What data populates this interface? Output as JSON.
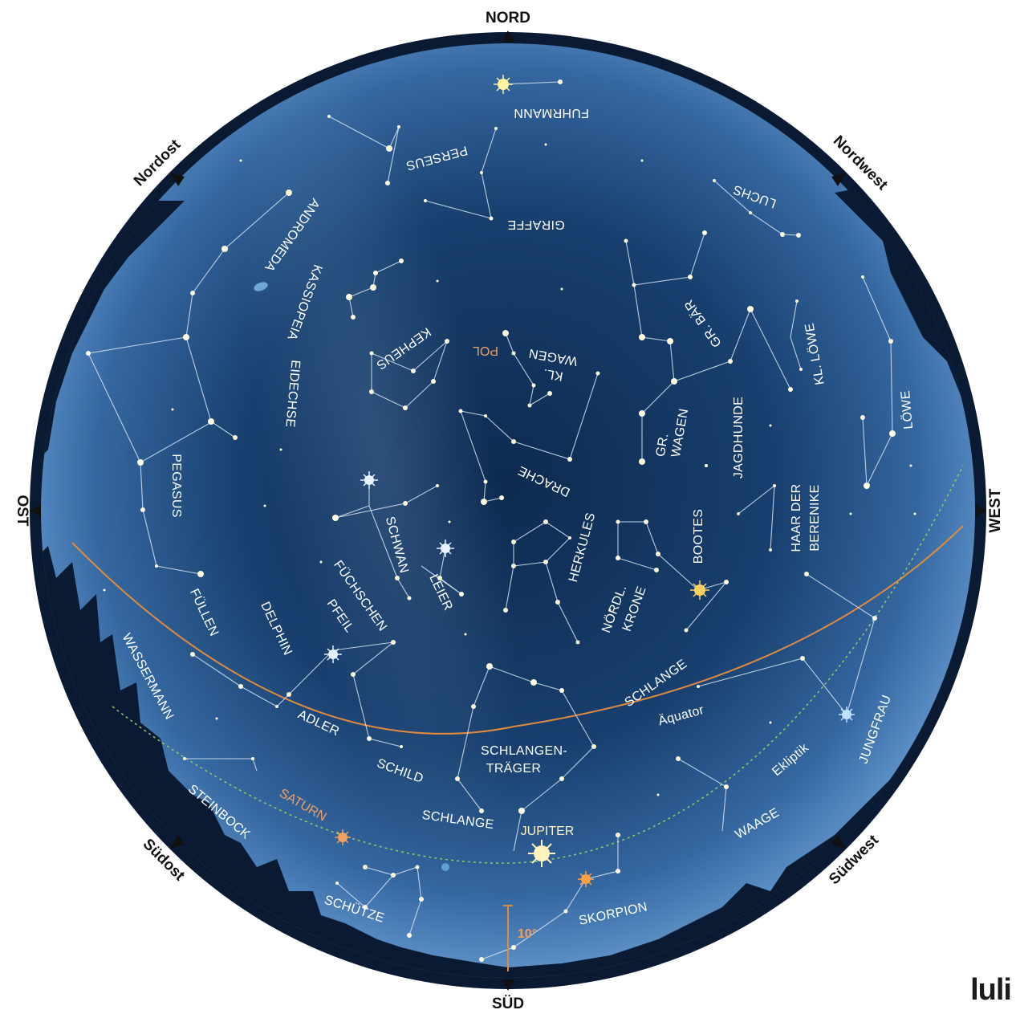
{
  "directions": {
    "north": "NORD",
    "south": "SÜD",
    "east": "OST",
    "west": "WEST",
    "northeast": "Nordost",
    "northwest": "Nordwest",
    "southeast": "Südost",
    "southwest": "Südwest"
  },
  "constellations": {
    "fuhrmann": "FUHRMANN",
    "perseus": "PERSEUS",
    "giraffe": "GIRAFFE",
    "luchs": "LUCHS",
    "andromeda": "ANDROMEDA",
    "kassiopeia": "KASSIOPEIA",
    "kepheus": "KEPHEUS",
    "eidechse": "EIDECHSE",
    "kl_wagen_1": "KL.",
    "kl_wagen_2": "WAGEN",
    "gr_baer": "GR. BÄR",
    "kl_loewe": "KL. LÖWE",
    "loewe": "LÖWE",
    "gr_wagen_1": "GR.",
    "gr_wagen_2": "WAGEN",
    "jagdhunde": "JAGDHUNDE",
    "drache": "DRACHE",
    "pegasus": "PEGASUS",
    "schwan": "SCHWAN",
    "haar_1": "HAAR DER",
    "haar_2": "BERENIKE",
    "herkules": "HERKULES",
    "bootes": "BOOTES",
    "leier": "LEIER",
    "fuechschen": "FÜCHSCHEN",
    "pfeil": "PFEIL",
    "delphin": "DELPHIN",
    "fuellen": "FÜLLEN",
    "noerdl_1": "NÖRDL.",
    "noerdl_2": "KRONE",
    "wassermann": "WASSERMANN",
    "schlange_1": "SCHLANGE",
    "adler": "ADLER",
    "schlangentraeger_1": "SCHLANGEN-",
    "schlangentraeger_2": "TRÄGER",
    "jungfrau": "JUNGFRAU",
    "schild": "SCHILD",
    "steinbock": "STEINBOCK",
    "schlange_2": "SCHLANGE",
    "waage": "WAAGE",
    "schuetze": "SCHÜTZE",
    "skorpion": "SKORPION"
  },
  "markers": {
    "pol": "POL",
    "aequator": "Äquator",
    "ekliptik": "Ekliptik",
    "scale": "10°"
  },
  "planets": {
    "saturn": "SATURN",
    "jupiter": "JUPITER"
  },
  "colors": {
    "sky_center": "#0e2a50",
    "sky_edge": "#4a7ab0",
    "frame": "#0a1a33",
    "equator": "#e08a40",
    "ecliptic": "#8fd060",
    "planet_label": "#f0a060"
  },
  "logo": "luli"
}
